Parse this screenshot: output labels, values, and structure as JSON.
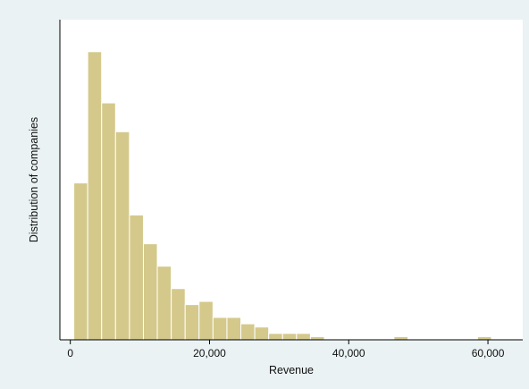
{
  "chart_data": {
    "type": "bar",
    "title": "",
    "xlabel": "Revenue",
    "ylabel": "Distribution of companies",
    "xlim": [
      -1500,
      65000
    ],
    "ylim": [
      0,
      100
    ],
    "show_y_ticks": false,
    "grid": false,
    "bin_width": 2000,
    "bin_start": 500,
    "values": [
      49,
      90,
      74,
      65,
      39,
      30,
      23,
      16,
      11,
      12,
      7,
      7,
      5,
      4,
      2,
      2,
      2,
      1,
      0,
      0,
      0,
      0,
      0,
      1,
      0,
      0,
      0,
      0,
      0,
      1,
      0,
      0,
      0,
      0,
      0,
      0,
      0,
      0.9
    ],
    "xticks": [
      {
        "value": 0,
        "label": "0"
      },
      {
        "value": 20000,
        "label": "20,000"
      },
      {
        "value": 40000,
        "label": "40,000"
      },
      {
        "value": 60000,
        "label": "60,000"
      }
    ],
    "colors": {
      "bar_fill": "#d4c98b",
      "bar_stroke": "#ffffff",
      "plot_bg": "#ffffff",
      "outer_bg": "#eaf2f3",
      "axis": "#000000"
    }
  }
}
